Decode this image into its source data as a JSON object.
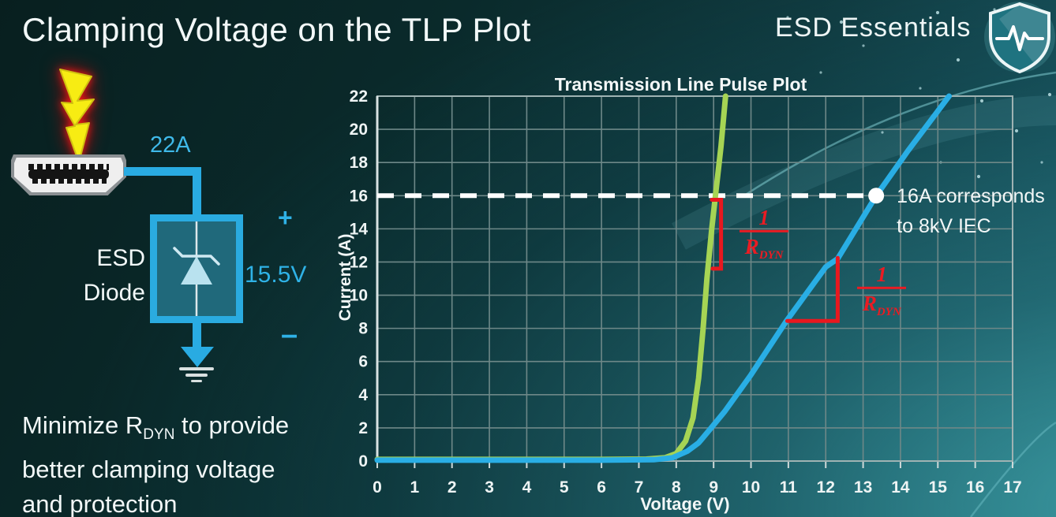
{
  "slide": {
    "title": "Clamping Voltage on the TLP Plot",
    "brand": "ESD Essentials"
  },
  "colors": {
    "accent_cyan": "#29abe2",
    "curve_green": "#a6d454",
    "curve_blue": "#29aee5",
    "annotation_red": "#e8181f",
    "bolt_yellow": "#f7ec13",
    "grid_grey": "#6e8888"
  },
  "diagram": {
    "surge_label": "22A",
    "device_label_line1": "ESD",
    "device_label_line2": "Diode",
    "plus_label": "+",
    "voltage_label": "15.5V",
    "minus_label": "–",
    "icons": [
      "lightning-bolt",
      "hdmi-connector",
      "zener-diode",
      "ground"
    ]
  },
  "note": {
    "line1_prefix": "Minimize R",
    "line1_sub": "DYN",
    "line1_suffix": " to provide",
    "line2": "better clamping voltage",
    "line3": "and protection"
  },
  "chart_data": {
    "type": "line",
    "title": "Transmission Line Pulse Plot",
    "xlabel": "Voltage (V)",
    "ylabel": "Current (A)",
    "xlim": [
      0,
      17
    ],
    "ylim": [
      0,
      22
    ],
    "xtick_step": 1,
    "ytick_step": 2,
    "grid": true,
    "legend": "none",
    "series": [
      {
        "name": "green_curve_low_rdyn",
        "color": "#a6d454",
        "points": [
          [
            0,
            0.1
          ],
          [
            3,
            0.1
          ],
          [
            6,
            0.1
          ],
          [
            7.2,
            0.12
          ],
          [
            7.7,
            0.2
          ],
          [
            8.0,
            0.45
          ],
          [
            8.25,
            1.2
          ],
          [
            8.45,
            2.6
          ],
          [
            8.6,
            5.0
          ],
          [
            8.72,
            8.0
          ],
          [
            8.82,
            11.0
          ],
          [
            8.95,
            14.0
          ],
          [
            9.05,
            16.0
          ],
          [
            9.2,
            19.0
          ],
          [
            9.32,
            22.0
          ]
        ]
      },
      {
        "name": "blue_curve_high_rdyn",
        "color": "#29aee5",
        "points": [
          [
            0,
            0.05
          ],
          [
            3,
            0.05
          ],
          [
            6,
            0.05
          ],
          [
            7.4,
            0.08
          ],
          [
            7.9,
            0.2
          ],
          [
            8.3,
            0.6
          ],
          [
            8.6,
            1.1
          ],
          [
            8.9,
            1.9
          ],
          [
            9.3,
            3.0
          ],
          [
            10.0,
            5.2
          ],
          [
            10.95,
            8.45
          ],
          [
            12.0,
            11.7
          ],
          [
            12.32,
            12.2
          ],
          [
            13.35,
            16.0
          ],
          [
            14.2,
            18.7
          ],
          [
            15.3,
            22.0
          ]
        ]
      }
    ],
    "annotations": {
      "threshold": {
        "y": 16,
        "x_start": 0,
        "x_end": 13.35,
        "color": "#ffffff",
        "style": "dashed"
      },
      "marker": {
        "x": 13.35,
        "y": 16,
        "label_lines": [
          "16A corresponds",
          "to 8kV IEC"
        ]
      },
      "slope_brackets": [
        {
          "points": [
            [
              8.95,
              15.75
            ],
            [
              9.2,
              15.75
            ],
            [
              9.2,
              11.6
            ],
            [
              8.97,
              11.6
            ]
          ],
          "color": "#e8181f"
        },
        {
          "points": [
            [
              10.97,
              8.45
            ],
            [
              12.32,
              8.45
            ],
            [
              12.32,
              12.25
            ]
          ],
          "color": "#e8181f"
        }
      ],
      "fractions": [
        {
          "numerator": "1",
          "den_base": "R",
          "den_sub": "DYN",
          "cx": 10.35,
          "cy": 13.5
        },
        {
          "numerator": "1",
          "den_base": "R",
          "den_sub": "DYN",
          "cx": 13.5,
          "cy": 10.05
        }
      ]
    }
  },
  "decor": {
    "stars": [
      [
        1066,
        28,
        3
      ],
      [
        1094,
        58,
        2
      ],
      [
        1150,
        42,
        2
      ],
      [
        1188,
        16,
        3
      ],
      [
        1214,
        76,
        3
      ],
      [
        1166,
        112,
        2
      ],
      [
        1244,
        128,
        3
      ],
      [
        1274,
        60,
        2
      ],
      [
        1306,
        36,
        2
      ],
      [
        1288,
        166,
        3
      ],
      [
        1192,
        206,
        2
      ],
      [
        1118,
        168,
        2
      ],
      [
        1240,
        224,
        3
      ],
      [
        1320,
        206,
        2
      ],
      [
        998,
        22,
        2
      ],
      [
        1040,
        92,
        2
      ],
      [
        1260,
        12,
        2
      ],
      [
        1330,
        120,
        3
      ]
    ]
  }
}
